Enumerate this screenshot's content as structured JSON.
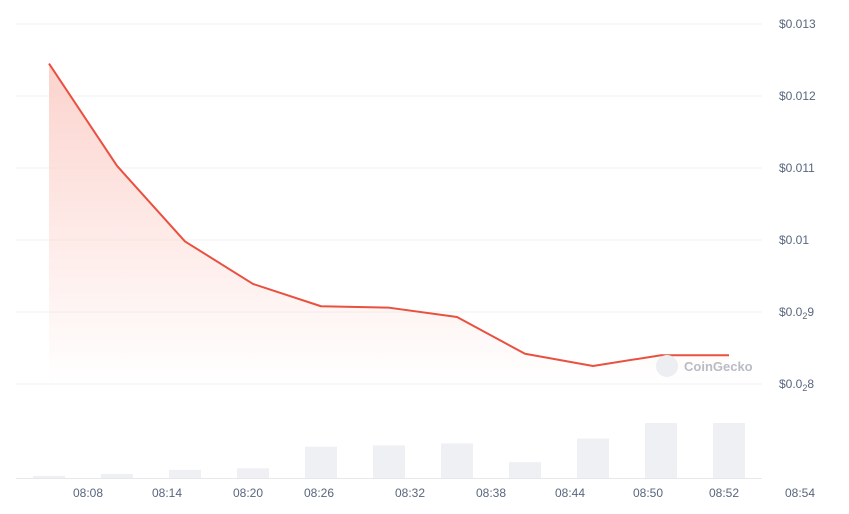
{
  "chart_data": {
    "type": "line",
    "x_ticks": [
      "08:08",
      "08:14",
      "08:20",
      "08:26",
      "08:32",
      "08:38",
      "08:44",
      "08:50",
      "08:52",
      "08:54"
    ],
    "y_ticks": [
      {
        "value": 0.013,
        "prefix": "$0.013",
        "sub": "",
        "suffix": ""
      },
      {
        "value": 0.012,
        "prefix": "$0.012",
        "sub": "",
        "suffix": ""
      },
      {
        "value": 0.011,
        "prefix": "$0.011",
        "sub": "",
        "suffix": ""
      },
      {
        "value": 0.01,
        "prefix": "$0.01",
        "sub": "",
        "suffix": ""
      },
      {
        "value": 0.009,
        "prefix": "$0.0",
        "sub": "2",
        "suffix": "9"
      },
      {
        "value": 0.008,
        "prefix": "$0.0",
        "sub": "2",
        "suffix": "8"
      }
    ],
    "ylim": [
      0.0078,
      0.013
    ],
    "grid": true,
    "series": [
      {
        "values": [
          0.01245,
          0.01103,
          0.00998,
          0.00939,
          0.00908,
          0.00906,
          0.00893,
          0.00842,
          0.00825,
          0.0084,
          0.0084
        ]
      }
    ],
    "volume": [
      0.5,
      1.0,
      2.0,
      2.4,
      7.7,
      8.0,
      8.5,
      3.9,
      9.7,
      13.5,
      13.5
    ],
    "colors": {
      "line": "#e9503f",
      "fill_top": "#fcd3cd",
      "volume": "#eff0f4",
      "grid": "#f0f1f3"
    },
    "watermark": "CoinGecko"
  }
}
